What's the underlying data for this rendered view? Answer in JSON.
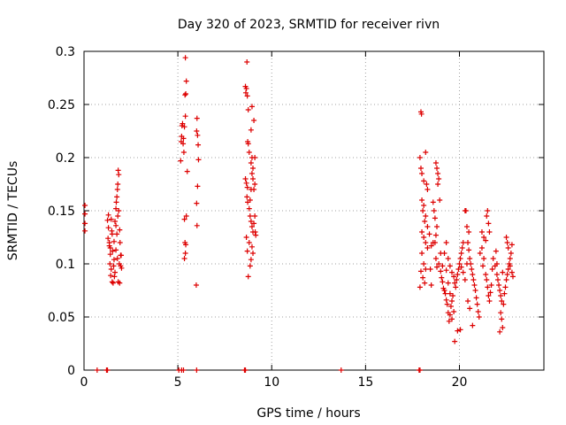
{
  "chart_data": {
    "type": "scatter",
    "title": "Day 320 of 2023, SRMTID for receiver rivn",
    "xlabel": "GPS time / hours",
    "ylabel": "SRMTID / TECUs",
    "xlim": [
      0,
      24.5
    ],
    "ylim": [
      0,
      0.3
    ],
    "x_ticks": [
      0,
      5,
      10,
      15,
      20
    ],
    "y_ticks": [
      0,
      0.05,
      0.1,
      0.15,
      0.2,
      0.25,
      0.3
    ],
    "y_tick_labels": [
      "0",
      "0.05",
      "0.1",
      "0.15",
      "0.2",
      "0.25",
      "0.3"
    ],
    "grid": true,
    "marker": "+",
    "color": "#dd0000",
    "series": [
      {
        "points": [
          [
            0.05,
            0.155
          ],
          [
            0.05,
            0.147
          ],
          [
            0.05,
            0.138
          ],
          [
            0.05,
            0.131
          ],
          [
            0.7,
            0
          ],
          [
            1.2,
            0
          ],
          [
            1.25,
            0
          ],
          [
            5.05,
            0
          ],
          [
            5.2,
            0
          ],
          [
            5.3,
            0
          ],
          [
            6.0,
            0
          ],
          [
            8.55,
            0
          ],
          [
            8.6,
            0
          ],
          [
            13.7,
            0
          ],
          [
            17.85,
            0
          ],
          [
            17.9,
            0
          ],
          [
            1.25,
            0.141
          ],
          [
            1.3,
            0.134
          ],
          [
            1.28,
            0.124
          ],
          [
            1.35,
            0.117
          ],
          [
            1.4,
            0.109
          ],
          [
            1.38,
            0.1
          ],
          [
            1.45,
            0.095
          ],
          [
            1.42,
            0.089
          ],
          [
            1.5,
            0.083
          ],
          [
            1.55,
            0.082
          ],
          [
            1.3,
            0.146
          ],
          [
            1.35,
            0.12
          ],
          [
            1.48,
            0.131
          ],
          [
            1.52,
            0.112
          ],
          [
            1.6,
            0.104
          ],
          [
            1.45,
            0.142
          ],
          [
            1.5,
            0.128
          ],
          [
            1.4,
            0.115
          ],
          [
            1.58,
            0.098
          ],
          [
            1.62,
            0.088
          ],
          [
            1.65,
            0.14
          ],
          [
            1.7,
            0.152
          ],
          [
            1.72,
            0.158
          ],
          [
            1.75,
            0.163
          ],
          [
            1.78,
            0.17
          ],
          [
            1.8,
            0.175
          ],
          [
            1.82,
            0.188
          ],
          [
            1.85,
            0.184
          ],
          [
            1.7,
            0.136
          ],
          [
            1.75,
            0.128
          ],
          [
            1.8,
            0.145
          ],
          [
            1.85,
            0.15
          ],
          [
            1.9,
            0.132
          ],
          [
            1.92,
            0.12
          ],
          [
            1.95,
            0.108
          ],
          [
            1.88,
            0.1
          ],
          [
            1.95,
            0.098
          ],
          [
            2.0,
            0.096
          ],
          [
            1.9,
            0.082
          ],
          [
            1.82,
            0.083
          ],
          [
            1.98,
            0.108
          ],
          [
            1.6,
            0.121
          ],
          [
            1.7,
            0.113
          ],
          [
            1.78,
            0.105
          ],
          [
            1.65,
            0.092
          ],
          [
            5.15,
            0.197
          ],
          [
            5.18,
            0.215
          ],
          [
            5.2,
            0.22
          ],
          [
            5.22,
            0.23
          ],
          [
            5.25,
            0.232
          ],
          [
            5.28,
            0.213
          ],
          [
            5.3,
            0.218
          ],
          [
            5.32,
            0.205
          ],
          [
            5.35,
            0.229
          ],
          [
            5.4,
            0.239
          ],
          [
            5.38,
            0.259
          ],
          [
            5.42,
            0.26
          ],
          [
            5.45,
            0.272
          ],
          [
            5.4,
            0.294
          ],
          [
            5.35,
            0.142
          ],
          [
            5.38,
            0.12
          ],
          [
            5.4,
            0.11
          ],
          [
            5.35,
            0.105
          ],
          [
            5.42,
            0.118
          ],
          [
            5.45,
            0.145
          ],
          [
            5.5,
            0.187
          ],
          [
            6.02,
            0.237
          ],
          [
            6.0,
            0.225
          ],
          [
            6.05,
            0.221
          ],
          [
            6.08,
            0.212
          ],
          [
            6.1,
            0.198
          ],
          [
            6.05,
            0.173
          ],
          [
            6.0,
            0.157
          ],
          [
            6.02,
            0.136
          ],
          [
            5.98,
            0.08
          ],
          [
            8.6,
            0.267
          ],
          [
            8.65,
            0.265
          ],
          [
            8.62,
            0.261
          ],
          [
            8.7,
            0.258
          ],
          [
            8.75,
            0.245
          ],
          [
            8.68,
            0.29
          ],
          [
            8.72,
            0.215
          ],
          [
            8.75,
            0.213
          ],
          [
            8.8,
            0.205
          ],
          [
            8.6,
            0.18
          ],
          [
            8.65,
            0.176
          ],
          [
            8.7,
            0.172
          ],
          [
            8.68,
            0.163
          ],
          [
            8.72,
            0.158
          ],
          [
            8.8,
            0.152
          ],
          [
            8.85,
            0.16
          ],
          [
            8.9,
            0.17
          ],
          [
            8.95,
            0.185
          ],
          [
            9.0,
            0.19
          ],
          [
            8.9,
            0.195
          ],
          [
            8.95,
            0.2
          ],
          [
            9.0,
            0.18
          ],
          [
            9.05,
            0.17
          ],
          [
            9.1,
            0.175
          ],
          [
            8.85,
            0.145
          ],
          [
            8.9,
            0.14
          ],
          [
            8.95,
            0.135
          ],
          [
            9.0,
            0.13
          ],
          [
            9.05,
            0.138
          ],
          [
            9.1,
            0.145
          ],
          [
            9.12,
            0.13
          ],
          [
            9.15,
            0.127
          ],
          [
            8.95,
            0.116
          ],
          [
            9.0,
            0.11
          ],
          [
            8.9,
            0.104
          ],
          [
            8.85,
            0.098
          ],
          [
            8.75,
            0.088
          ],
          [
            8.7,
            0.112
          ],
          [
            8.65,
            0.125
          ],
          [
            8.8,
            0.12
          ],
          [
            8.95,
            0.248
          ],
          [
            9.05,
            0.235
          ],
          [
            9.1,
            0.2
          ],
          [
            8.9,
            0.226
          ],
          [
            17.95,
            0.243
          ],
          [
            17.98,
            0.241
          ],
          [
            17.9,
            0.2
          ],
          [
            17.95,
            0.19
          ],
          [
            18.0,
            0.185
          ],
          [
            18.1,
            0.178
          ],
          [
            18.2,
            0.205
          ],
          [
            18.25,
            0.175
          ],
          [
            18.3,
            0.17
          ],
          [
            18.0,
            0.16
          ],
          [
            18.05,
            0.15
          ],
          [
            18.1,
            0.155
          ],
          [
            18.15,
            0.14
          ],
          [
            18.2,
            0.145
          ],
          [
            18.0,
            0.13
          ],
          [
            18.1,
            0.125
          ],
          [
            18.2,
            0.12
          ],
          [
            18.3,
            0.115
          ],
          [
            18.0,
            0.11
          ],
          [
            18.1,
            0.1
          ],
          [
            18.2,
            0.095
          ],
          [
            17.95,
            0.093
          ],
          [
            18.05,
            0.087
          ],
          [
            18.15,
            0.082
          ],
          [
            17.9,
            0.078
          ],
          [
            18.3,
            0.135
          ],
          [
            18.4,
            0.128
          ],
          [
            18.5,
            0.117
          ],
          [
            18.45,
            0.095
          ],
          [
            18.5,
            0.08
          ],
          [
            18.6,
            0.12
          ],
          [
            18.7,
            0.12
          ],
          [
            18.75,
            0.127
          ],
          [
            18.8,
            0.135
          ],
          [
            18.85,
            0.175
          ],
          [
            18.75,
            0.195
          ],
          [
            18.8,
            0.19
          ],
          [
            18.85,
            0.185
          ],
          [
            18.9,
            0.18
          ],
          [
            18.95,
            0.16
          ],
          [
            18.6,
            0.158
          ],
          [
            18.65,
            0.15
          ],
          [
            18.7,
            0.143
          ],
          [
            18.75,
            0.105
          ],
          [
            18.8,
            0.097
          ],
          [
            18.9,
            0.1
          ],
          [
            19.0,
            0.093
          ],
          [
            19.05,
            0.087
          ],
          [
            19.1,
            0.083
          ],
          [
            19.15,
            0.077
          ],
          [
            19.2,
            0.075
          ],
          [
            19.25,
            0.072
          ],
          [
            19.3,
            0.066
          ],
          [
            19.35,
            0.062
          ],
          [
            19.4,
            0.054
          ],
          [
            19.45,
            0.046
          ],
          [
            19.5,
            0.052
          ],
          [
            19.55,
            0.06
          ],
          [
            19.6,
            0.065
          ],
          [
            19.65,
            0.07
          ],
          [
            19.2,
            0.11
          ],
          [
            19.3,
            0.12
          ],
          [
            19.4,
            0.105
          ],
          [
            19.5,
            0.098
          ],
          [
            19.6,
            0.092
          ],
          [
            19.7,
            0.088
          ],
          [
            19.75,
            0.082
          ],
          [
            19.8,
            0.078
          ],
          [
            19.85,
            0.085
          ],
          [
            19.9,
            0.09
          ],
          [
            19.95,
            0.095
          ],
          [
            20.0,
            0.1
          ],
          [
            20.05,
            0.105
          ],
          [
            20.1,
            0.11
          ],
          [
            20.15,
            0.115
          ],
          [
            19.75,
            0.027
          ],
          [
            19.9,
            0.037
          ],
          [
            20.05,
            0.038
          ],
          [
            19.6,
            0.048
          ],
          [
            19.7,
            0.055
          ],
          [
            19.3,
            0.094
          ],
          [
            19.1,
            0.098
          ],
          [
            19.0,
            0.11
          ],
          [
            19.4,
            0.082
          ],
          [
            19.5,
            0.072
          ],
          [
            20.2,
            0.12
          ],
          [
            20.3,
            0.15
          ],
          [
            20.35,
            0.15
          ],
          [
            20.4,
            0.135
          ],
          [
            20.45,
            0.12
          ],
          [
            20.5,
            0.113
          ],
          [
            20.55,
            0.105
          ],
          [
            20.6,
            0.1
          ],
          [
            20.65,
            0.095
          ],
          [
            20.7,
            0.09
          ],
          [
            20.75,
            0.085
          ],
          [
            20.8,
            0.08
          ],
          [
            20.85,
            0.075
          ],
          [
            20.9,
            0.068
          ],
          [
            20.95,
            0.062
          ],
          [
            21.0,
            0.055
          ],
          [
            21.05,
            0.05
          ],
          [
            20.7,
            0.042
          ],
          [
            20.55,
            0.058
          ],
          [
            20.45,
            0.065
          ],
          [
            20.3,
            0.085
          ],
          [
            20.2,
            0.092
          ],
          [
            20.1,
            0.097
          ],
          [
            20.4,
            0.1
          ],
          [
            20.5,
            0.13
          ],
          [
            21.1,
            0.11
          ],
          [
            21.2,
            0.115
          ],
          [
            21.3,
            0.105
          ],
          [
            21.25,
            0.098
          ],
          [
            21.4,
            0.09
          ],
          [
            21.45,
            0.085
          ],
          [
            21.5,
            0.078
          ],
          [
            21.55,
            0.07
          ],
          [
            21.6,
            0.065
          ],
          [
            21.65,
            0.073
          ],
          [
            21.7,
            0.08
          ],
          [
            21.75,
            0.095
          ],
          [
            21.8,
            0.105
          ],
          [
            21.2,
            0.13
          ],
          [
            21.3,
            0.125
          ],
          [
            21.45,
            0.145
          ],
          [
            21.5,
            0.15
          ],
          [
            21.55,
            0.138
          ],
          [
            21.6,
            0.13
          ],
          [
            21.4,
            0.122
          ],
          [
            21.9,
            0.098
          ],
          [
            22.0,
            0.09
          ],
          [
            22.05,
            0.085
          ],
          [
            22.1,
            0.08
          ],
          [
            22.15,
            0.075
          ],
          [
            22.2,
            0.07
          ],
          [
            22.25,
            0.065
          ],
          [
            22.2,
            0.054
          ],
          [
            22.25,
            0.048
          ],
          [
            22.3,
            0.04
          ],
          [
            22.15,
            0.036
          ],
          [
            22.35,
            0.062
          ],
          [
            22.4,
            0.072
          ],
          [
            22.45,
            0.078
          ],
          [
            22.5,
            0.085
          ],
          [
            22.55,
            0.09
          ],
          [
            22.6,
            0.095
          ],
          [
            22.65,
            0.1
          ],
          [
            22.7,
            0.105
          ],
          [
            22.75,
            0.11
          ],
          [
            22.5,
            0.125
          ],
          [
            22.55,
            0.12
          ],
          [
            22.6,
            0.115
          ],
          [
            22.7,
            0.098
          ],
          [
            22.8,
            0.092
          ],
          [
            22.85,
            0.088
          ],
          [
            22.8,
            0.118
          ],
          [
            22.3,
            0.092
          ],
          [
            22.0,
            0.1
          ],
          [
            21.95,
            0.112
          ]
        ]
      }
    ]
  }
}
